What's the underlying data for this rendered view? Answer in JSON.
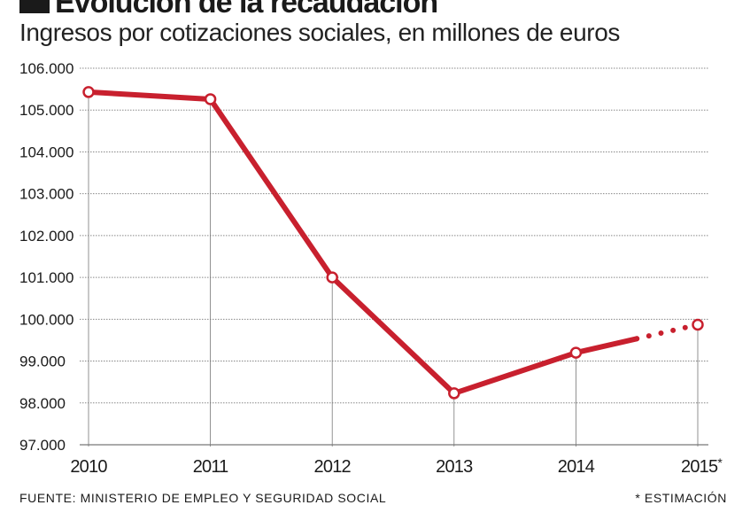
{
  "header": {
    "title": "Evolución de la recaudación",
    "subtitle": "Ingresos por cotizaciones sociales, en millones de euros"
  },
  "footer": {
    "source": "FUENTE: MINISTERIO DE EMPLEO Y SEGURIDAD SOCIAL",
    "note": "* ESTIMACIÓN"
  },
  "chart_data": {
    "type": "line",
    "title": "Evolución de la recaudación",
    "subtitle": "Ingresos por cotizaciones sociales, en millones de euros",
    "x": [
      "2010",
      "2011",
      "2012",
      "2013",
      "2014",
      "2015*"
    ],
    "series": [
      {
        "values": [
          105430,
          105260,
          101000,
          98230,
          99200,
          99870
        ]
      }
    ],
    "estimated_categories": [
      "2015*"
    ],
    "ylim": [
      97000,
      106000
    ],
    "yticks": [
      97000,
      98000,
      99000,
      100000,
      101000,
      102000,
      103000,
      104000,
      105000,
      106000
    ],
    "ytick_labels": [
      "97.000",
      "98.000",
      "99.000",
      "100.000",
      "101.000",
      "102.000",
      "103.000",
      "104.000",
      "105.000",
      "106.000"
    ],
    "grid": true,
    "colors": {
      "line": "#c8202e",
      "grid": "#888888",
      "text": "#1a1a1a"
    }
  }
}
